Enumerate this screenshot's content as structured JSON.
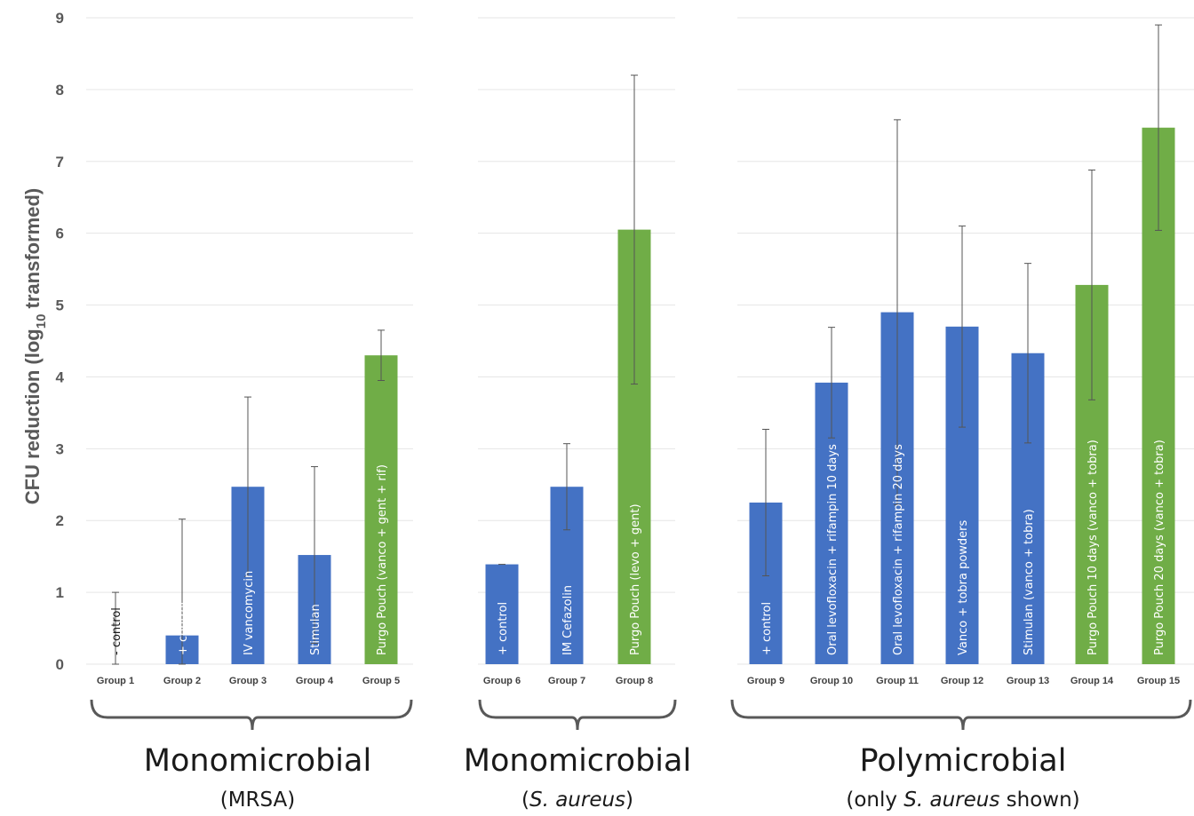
{
  "chart_data": {
    "type": "bar",
    "ylabel_main": "CFU reduction (log",
    "ylabel_sub": "10",
    "ylabel_end": " transformed)",
    "ylim": [
      0,
      9
    ],
    "y_ticks": [
      "0",
      "1",
      "2",
      "3",
      "4",
      "5",
      "6",
      "7",
      "8",
      "9"
    ],
    "grid": true,
    "colors": {
      "blue": "#4472c4",
      "green": "#70ad47",
      "grid": "#e6e6e6",
      "error": "#555555",
      "bracket": "#595959"
    },
    "panels": [
      {
        "title": "Monomicrobial",
        "subtitle": "(MRSA)",
        "subtitle_italic": "",
        "bars": [
          {
            "category": "Group 1",
            "label": "- control",
            "value": 0.0,
            "error": 1.0,
            "color": "none"
          },
          {
            "category": "Group 2",
            "label": "+ control",
            "value": 0.4,
            "error": 1.62,
            "color": "blue"
          },
          {
            "category": "Group 3",
            "label": "IV vancomycin",
            "value": 2.47,
            "error": 1.25,
            "color": "blue"
          },
          {
            "category": "Group 4",
            "label": "Stimulan",
            "value": 1.52,
            "error": 1.23,
            "color": "blue"
          },
          {
            "category": "Group 5",
            "label": "Purgo Pouch (vanco + gent + rif)",
            "value": 4.3,
            "error": 0.35,
            "color": "green"
          }
        ]
      },
      {
        "title": "Monomicrobial",
        "subtitle": "(",
        "subtitle_italic": "S. aureus",
        "subtitle_end": ")",
        "bars": [
          {
            "category": "Group 6",
            "label": "+ control",
            "value": 1.39,
            "error": 0.0,
            "color": "blue"
          },
          {
            "category": "Group 7",
            "label": "IM Cefazolin",
            "value": 2.47,
            "error": 0.6,
            "color": "blue"
          },
          {
            "category": "Group 8",
            "label": "Purgo Pouch (levo + gent)",
            "value": 6.05,
            "error": 2.15,
            "color": "green"
          }
        ]
      },
      {
        "title": "Polymicrobial",
        "subtitle": "(only ",
        "subtitle_italic": "S. aureus",
        "subtitle_end": " shown)",
        "bars": [
          {
            "category": "Group 9",
            "label": "+ control",
            "value": 2.25,
            "error": 1.02,
            "color": "blue"
          },
          {
            "category": "Group 10",
            "label": "Oral levofloxacin + rifampin 10 days",
            "value": 3.92,
            "error": 0.77,
            "color": "blue"
          },
          {
            "category": "Group 11",
            "label": "Oral levofloxacin + rifampin 20 days",
            "value": 4.9,
            "error": 2.68,
            "color": "blue"
          },
          {
            "category": "Group 12",
            "label": "Vanco + tobra powders",
            "value": 4.7,
            "error": 1.4,
            "color": "blue"
          },
          {
            "category": "Group 13",
            "label": "Stimulan (vanco + tobra)",
            "value": 4.33,
            "error": 1.25,
            "color": "blue"
          },
          {
            "category": "Group 14",
            "label": "Purgo Pouch 10 days (vanco + tobra)",
            "value": 5.28,
            "error": 1.6,
            "color": "green"
          },
          {
            "category": "Group 15",
            "label": "Purgo Pouch 20 days (vanco + tobra)",
            "value": 7.47,
            "error": 1.43,
            "color": "green"
          }
        ]
      }
    ]
  }
}
